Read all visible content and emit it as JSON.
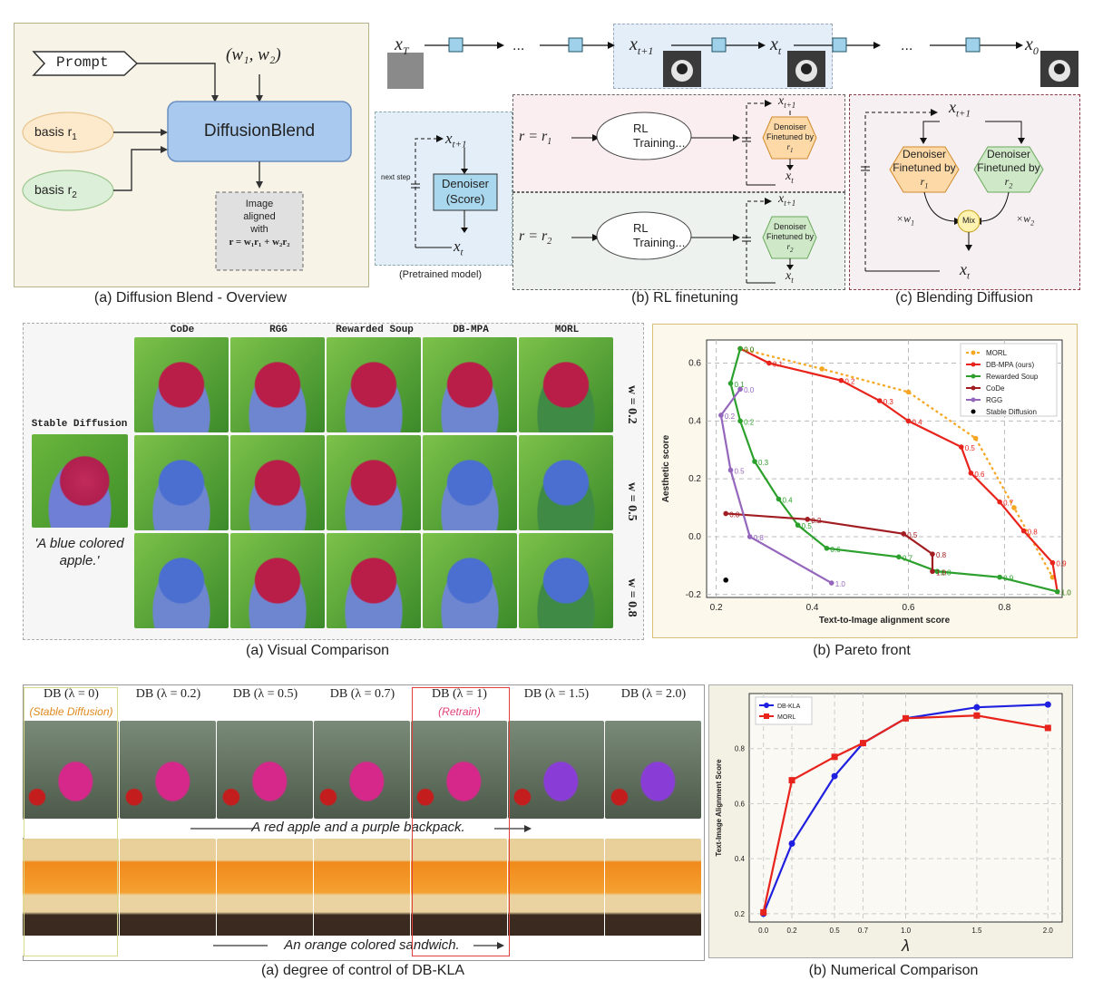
{
  "fig1": {
    "overview": {
      "prompt": "Prompt",
      "weights": "(w₁, w₂)",
      "basis1": "basis r",
      "basis1_sub": "1",
      "basis2": "basis r",
      "basis2_sub": "2",
      "blend": "DiffusionBlend",
      "out_l1": "Image",
      "out_l2": "aligned",
      "out_l3": "with",
      "out_l4": "r = w₁r₁ + w₂r₂"
    },
    "chain": {
      "xT": "x",
      "xT_sub": "T",
      "dots1": "...",
      "xt1": "x",
      "xt1_sub": "t+1",
      "xt": "x",
      "xt_sub": "t",
      "dots2": "...",
      "x0": "x",
      "x0_sub": "0"
    },
    "pretrained": {
      "xt1": "x",
      "xt1_sub": "t+1",
      "next_step": "next step",
      "denoiser_l1": "Denoiser",
      "denoiser_l2": "(Score)",
      "xt": "x",
      "xt_sub": "t",
      "label": "(Pretrained model)"
    },
    "rl": {
      "r1": "r = r",
      "r1_sub": "1",
      "r2": "r = r",
      "r2_sub": "2",
      "rl_l1": "RL",
      "rl_l2": "Training...",
      "ft_l1": "Denoiser",
      "ft_l2": "Finetuned by",
      "ft1_r": "r",
      "ft1_sub": "1",
      "ft2_r": "r",
      "ft2_sub": "2",
      "xt1": "x",
      "xt1_sub": "t+1",
      "xt": "x",
      "xt_sub": "t"
    },
    "blend": {
      "xt1": "x",
      "xt1_sub": "t+1",
      "d_l1": "Denoiser",
      "d_l2": "Finetuned by",
      "d1_r": "r",
      "d1_sub": "1",
      "d2_r": "r",
      "d2_sub": "2",
      "w1": "×w",
      "w1_sub": "1",
      "w2": "×w",
      "w2_sub": "2",
      "mix": "Mix",
      "xt": "x",
      "xt_sub": "t"
    },
    "captions": {
      "a": "(a) Diffusion Blend - Overview",
      "b": "(b) RL finetuning",
      "c": "(c) Blending Diffusion"
    }
  },
  "fig2": {
    "columns": [
      "CoDe",
      "RGG",
      "Rewarded Soup",
      "DB-MPA",
      "MORL"
    ],
    "rows": [
      "w = 0.2",
      "w = 0.5",
      "w = 0.8"
    ],
    "sd_label": "Stable Diffusion",
    "prompt": "'A blue colored apple.'",
    "caption_a": "(a) Visual Comparison",
    "caption_b": "(b) Pareto front"
  },
  "chart_pareto": {
    "type": "line",
    "xlabel": "Text-to-Image alignment score",
    "ylabel": "Aesthetic score",
    "xlim": [
      0.18,
      0.92
    ],
    "ylim": [
      -0.21,
      0.68
    ],
    "xticks": [
      "0.2",
      "0.4",
      "0.6",
      "0.8"
    ],
    "yticks": [
      "-0.2",
      "0.0",
      "0.2",
      "0.4",
      "0.6"
    ],
    "legend_position": "top-right",
    "series": [
      {
        "name": "MORL",
        "color": "#f5a623",
        "dashed": true,
        "points": [
          [
            0.25,
            0.65
          ],
          [
            0.42,
            0.58
          ],
          [
            0.6,
            0.5
          ],
          [
            0.74,
            0.34
          ],
          [
            0.82,
            0.1
          ],
          [
            0.9,
            -0.14
          ]
        ],
        "labels": []
      },
      {
        "name": "DB-MPA (ours)",
        "color": "#e8231c",
        "dashed": false,
        "points": [
          [
            0.25,
            0.65
          ],
          [
            0.31,
            0.6
          ],
          [
            0.46,
            0.54
          ],
          [
            0.54,
            0.47
          ],
          [
            0.6,
            0.4
          ],
          [
            0.71,
            0.31
          ],
          [
            0.73,
            0.22
          ],
          [
            0.79,
            0.12
          ],
          [
            0.84,
            0.02
          ],
          [
            0.9,
            -0.09
          ],
          [
            0.91,
            -0.19
          ]
        ],
        "labels": [
          "0.0",
          "0.1",
          "0.2",
          "0.3",
          "0.4",
          "0.5",
          "0.6",
          "0.7",
          "0.8",
          "0.9",
          "1.0"
        ]
      },
      {
        "name": "Rewarded Soup",
        "color": "#2ca02c",
        "dashed": false,
        "points": [
          [
            0.25,
            0.65
          ],
          [
            0.23,
            0.53
          ],
          [
            0.25,
            0.4
          ],
          [
            0.28,
            0.26
          ],
          [
            0.33,
            0.13
          ],
          [
            0.37,
            0.04
          ],
          [
            0.43,
            -0.04
          ],
          [
            0.58,
            -0.07
          ],
          [
            0.66,
            -0.12
          ],
          [
            0.79,
            -0.14
          ],
          [
            0.91,
            -0.19
          ]
        ],
        "labels": [
          "0.0",
          "0.1",
          "0.2",
          "0.3",
          "0.4",
          "0.5",
          "0.6",
          "0.7",
          "0.8",
          "0.9",
          "1.0"
        ]
      },
      {
        "name": "CoDe",
        "color": "#a11d21",
        "dashed": false,
        "points": [
          [
            0.22,
            0.08
          ],
          [
            0.39,
            0.06
          ],
          [
            0.59,
            0.01
          ],
          [
            0.65,
            -0.06
          ],
          [
            0.65,
            -0.12
          ]
        ],
        "labels": [
          "0.0",
          "0.2",
          "0.5",
          "0.8",
          "1.0"
        ]
      },
      {
        "name": "RGG",
        "color": "#9467bd",
        "dashed": false,
        "points": [
          [
            0.25,
            0.51
          ],
          [
            0.21,
            0.42
          ],
          [
            0.23,
            0.23
          ],
          [
            0.27,
            0.0
          ],
          [
            0.44,
            -0.16
          ]
        ],
        "labels": [
          "0.0",
          "0.2",
          "0.5",
          "0.8",
          "1.0"
        ]
      },
      {
        "name": "Stable Diffusion",
        "color": "#000000",
        "dashed": false,
        "points": [
          [
            0.22,
            -0.15
          ]
        ],
        "labels": []
      }
    ]
  },
  "fig3": {
    "columns": [
      {
        "label": "DB (λ = 0)",
        "sub": "(Stable Diffusion)"
      },
      {
        "label": "DB (λ = 0.2)",
        "sub": ""
      },
      {
        "label": "DB (λ = 0.5)",
        "sub": ""
      },
      {
        "label": "DB (λ = 0.7)",
        "sub": ""
      },
      {
        "label": "DB (λ = 1)",
        "sub": "(Retrain)"
      },
      {
        "label": "DB (λ = 1.5)",
        "sub": ""
      },
      {
        "label": "DB (λ = 2.0)",
        "sub": ""
      }
    ],
    "prompt1": "A red apple and a purple backpack.",
    "prompt2": "An orange colored sandwich.",
    "caption_a": "(a) degree of control of DB-KLA",
    "caption_b": "(b) Numerical Comparison"
  },
  "chart_numerical": {
    "type": "line",
    "xlabel": "λ",
    "ylabel": "Text-Image Alignment Score",
    "x": [
      0.0,
      0.2,
      0.5,
      0.7,
      1.0,
      1.5,
      2.0
    ],
    "xlim": [
      -0.1,
      2.1
    ],
    "ylim": [
      0.17,
      1.0
    ],
    "yticks": [
      "0.2",
      "0.4",
      "0.6",
      "0.8"
    ],
    "xticks": [
      "0.0",
      "0.2",
      "0.5",
      "0.7",
      "1.0",
      "1.5",
      "2.0"
    ],
    "legend_position": "top-left",
    "series": [
      {
        "name": "DB-KLA",
        "color": "#1f1fe0",
        "marker": "circle",
        "values": [
          0.2,
          0.455,
          0.7,
          0.82,
          0.91,
          0.95,
          0.96
        ]
      },
      {
        "name": "MORL",
        "color": "#e8231c",
        "marker": "square",
        "values": [
          0.205,
          0.685,
          0.77,
          0.82,
          0.91,
          0.92,
          0.875
        ]
      }
    ]
  }
}
